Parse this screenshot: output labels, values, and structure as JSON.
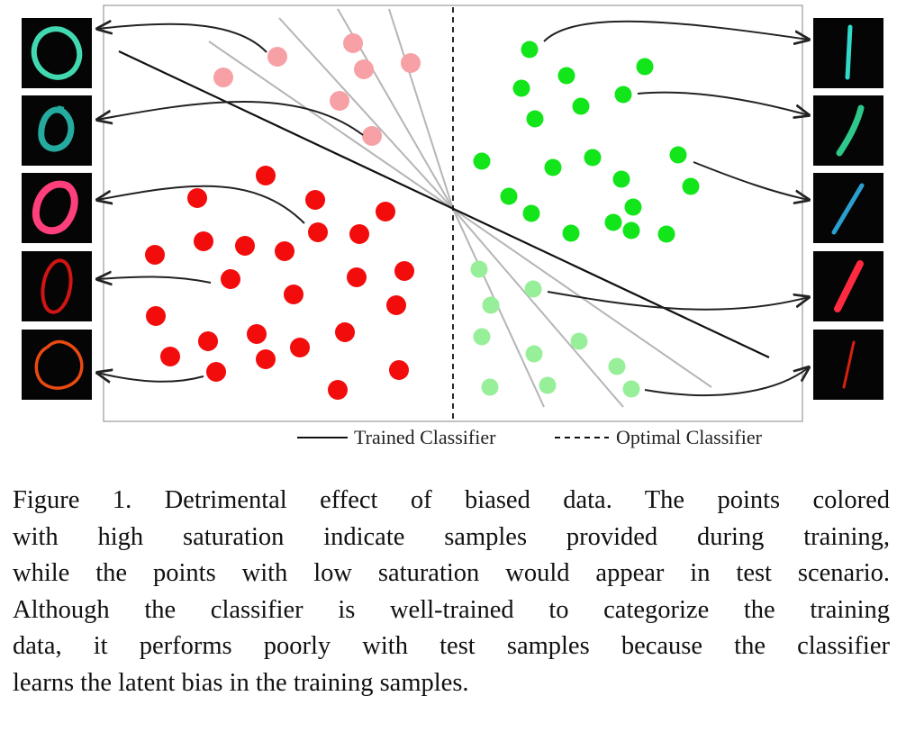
{
  "figure": {
    "legend": {
      "trained_label": "Trained Classifier",
      "optimal_label": "Optimal Classifier"
    },
    "colors": {
      "train_class_a": "#f20c0c",
      "test_class_a": "#f7a1a6",
      "train_class_b": "#12e51a",
      "test_class_b": "#97ef99",
      "trained_line": "#111111",
      "optimal_line": "#111111",
      "rotated_lines": "#b5b5b5",
      "frame": "#999999"
    },
    "left_thumbnails": [
      {
        "digit": "0",
        "stroke": "#43d9b0",
        "desc": "teal zero"
      },
      {
        "digit": "0",
        "stroke": "#25aaa0",
        "desc": "dark teal zero"
      },
      {
        "digit": "0",
        "stroke": "#ff3f7c",
        "desc": "pink zero"
      },
      {
        "digit": "0",
        "stroke": "#d11414",
        "desc": "red zero"
      },
      {
        "digit": "0",
        "stroke": "#ea4a12",
        "desc": "orange zero"
      }
    ],
    "right_thumbnails": [
      {
        "digit": "1",
        "stroke": "#30d9c8",
        "desc": "cyan one"
      },
      {
        "digit": "1",
        "stroke": "#2ec98a",
        "desc": "green one"
      },
      {
        "digit": "1",
        "stroke": "#2a9fd0",
        "desc": "blue one"
      },
      {
        "digit": "1",
        "stroke": "#ff2a40",
        "desc": "red one"
      },
      {
        "digit": "1",
        "stroke": "#d82010",
        "desc": "dark red one"
      }
    ]
  },
  "caption": {
    "lines": [
      "Figure 1. Detrimental effect of biased data.  The points colored",
      "with high saturation indicate samples provided during training,",
      "while the points with low saturation would appear in test scenario.",
      "Although the classifier is well-trained to categorize the training",
      "data, it performs poorly with test samples because the classifier",
      "learns the latent bias in the training samples."
    ]
  }
}
